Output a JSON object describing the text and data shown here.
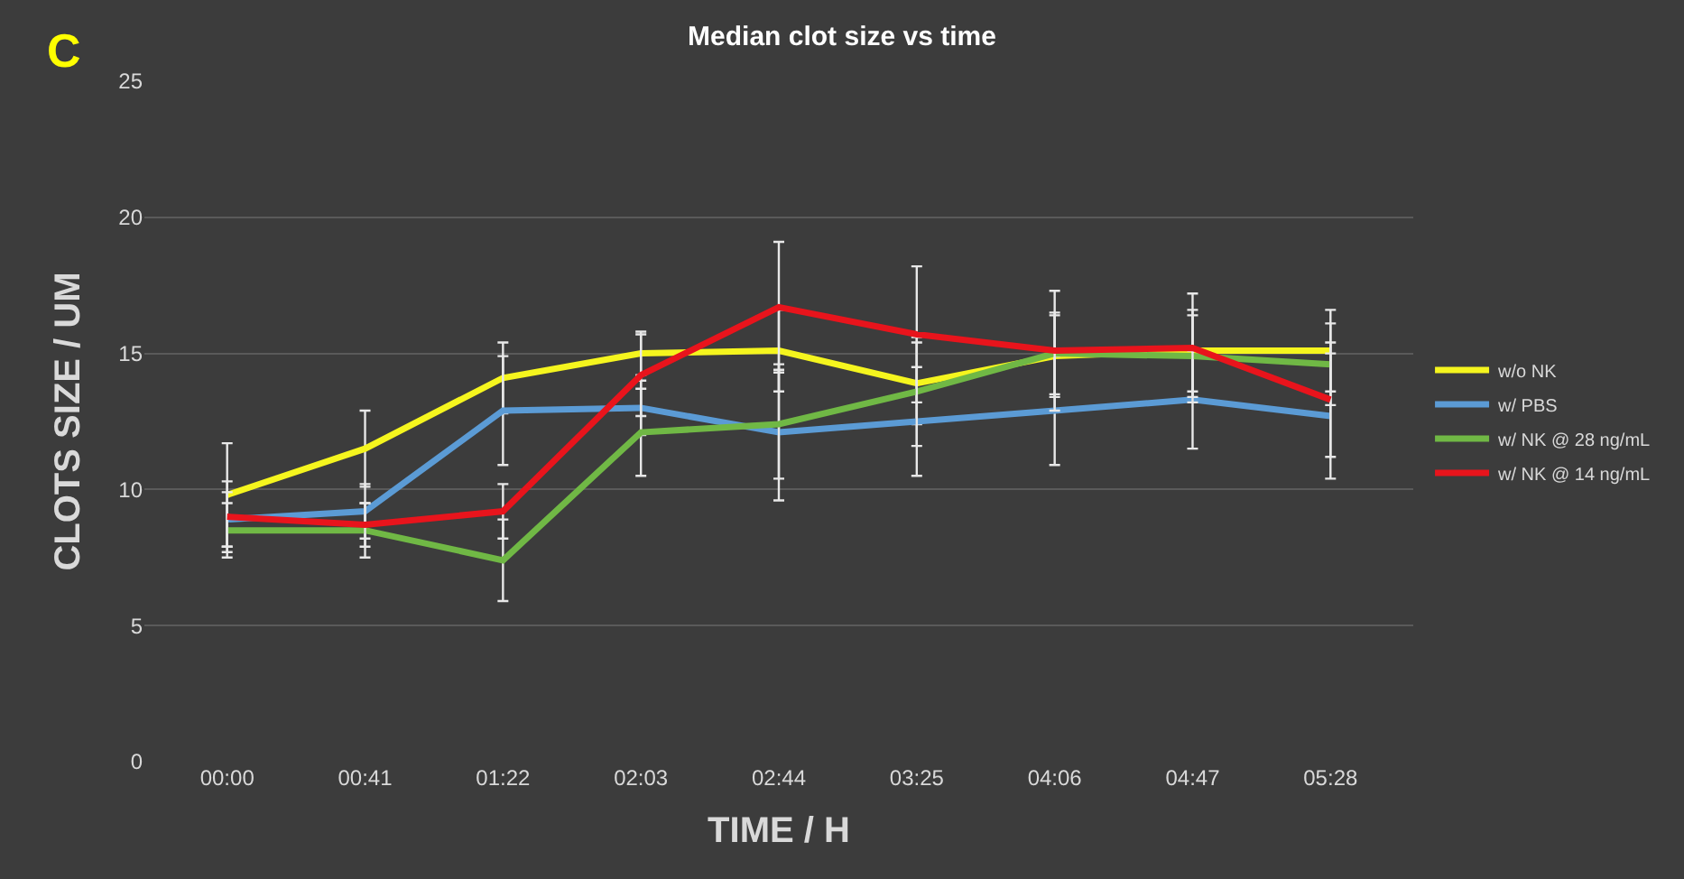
{
  "chart_data": {
    "type": "line",
    "title": "Median clot size vs time",
    "xlabel": "TIME / H",
    "ylabel": "CLOTS SIZE / UM",
    "annotations": [
      "C"
    ],
    "categories": [
      "00:00",
      "00:41",
      "01:22",
      "02:03",
      "02:44",
      "03:25",
      "04:06",
      "04:47",
      "05:28"
    ],
    "series": [
      {
        "name": "w/o NK",
        "color": "#f5f51e",
        "values": [
          9.8,
          11.5,
          14.1,
          15.0,
          15.1,
          13.9,
          14.9,
          15.1,
          15.1
        ],
        "errors": [
          1.9,
          1.4,
          1.3,
          0.8,
          1.5,
          1.5,
          1.5,
          1.5,
          1.5
        ]
      },
      {
        "name": "w/ PBS",
        "color": "#5b9bd5",
        "values": [
          8.9,
          9.2,
          12.9,
          13.0,
          12.1,
          12.5,
          12.9,
          13.3,
          12.7
        ],
        "errors": [
          1.0,
          1.0,
          2.0,
          1.0,
          2.5,
          2.0,
          2.0,
          1.8,
          2.3
        ]
      },
      {
        "name": "w/ NK @ 28 ng/mL",
        "color": "#70b845",
        "values": [
          8.5,
          8.5,
          7.4,
          12.1,
          12.4,
          13.6,
          15.0,
          14.9,
          14.6
        ],
        "errors": [
          1.0,
          1.0,
          1.5,
          1.6,
          2.0,
          2.0,
          1.5,
          1.5,
          1.5
        ]
      },
      {
        "name": "w/ NK @ 14 ng/mL",
        "color": "#e8141c",
        "values": [
          9.0,
          8.7,
          9.2,
          14.2,
          16.7,
          15.7,
          15.1,
          15.2,
          13.3
        ],
        "errors": [
          1.3,
          0.8,
          1.0,
          1.5,
          2.4,
          2.5,
          2.2,
          2.0,
          2.1
        ]
      }
    ],
    "ylim": [
      0,
      25
    ],
    "yticks": [
      0,
      5,
      10,
      15,
      20,
      25
    ],
    "grid": "y",
    "legend": "right",
    "marker": "none",
    "line_style": "solid"
  }
}
